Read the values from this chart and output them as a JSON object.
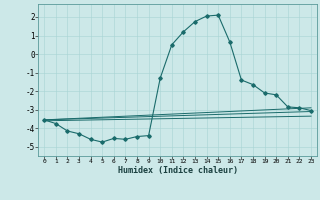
{
  "xlabel": "Humidex (Indice chaleur)",
  "xlim": [
    -0.5,
    23.5
  ],
  "ylim": [
    -5.5,
    2.7
  ],
  "xticks": [
    0,
    1,
    2,
    3,
    4,
    5,
    6,
    7,
    8,
    9,
    10,
    11,
    12,
    13,
    14,
    15,
    16,
    17,
    18,
    19,
    20,
    21,
    22,
    23
  ],
  "yticks": [
    -5,
    -4,
    -3,
    -2,
    -1,
    0,
    1,
    2
  ],
  "bg_color": "#cce8e8",
  "line_color": "#1a6b6b",
  "main_curve_x": [
    0,
    1,
    2,
    3,
    4,
    5,
    6,
    7,
    8,
    9,
    10,
    11,
    12,
    13,
    14,
    15,
    16,
    17,
    18,
    19,
    20,
    21,
    22,
    23
  ],
  "main_curve_y": [
    -3.55,
    -3.75,
    -4.15,
    -4.3,
    -4.6,
    -4.75,
    -4.55,
    -4.6,
    -4.45,
    -4.4,
    -1.3,
    0.5,
    1.2,
    1.75,
    2.05,
    2.1,
    0.65,
    -1.4,
    -1.65,
    -2.1,
    -2.2,
    -2.85,
    -2.9,
    -3.05
  ],
  "line1_x": [
    0,
    23
  ],
  "line1_y": [
    -3.55,
    -2.9
  ],
  "line2_x": [
    0,
    23
  ],
  "line2_y": [
    -3.55,
    -3.1
  ],
  "line3_x": [
    0,
    23
  ],
  "line3_y": [
    -3.6,
    -3.35
  ]
}
